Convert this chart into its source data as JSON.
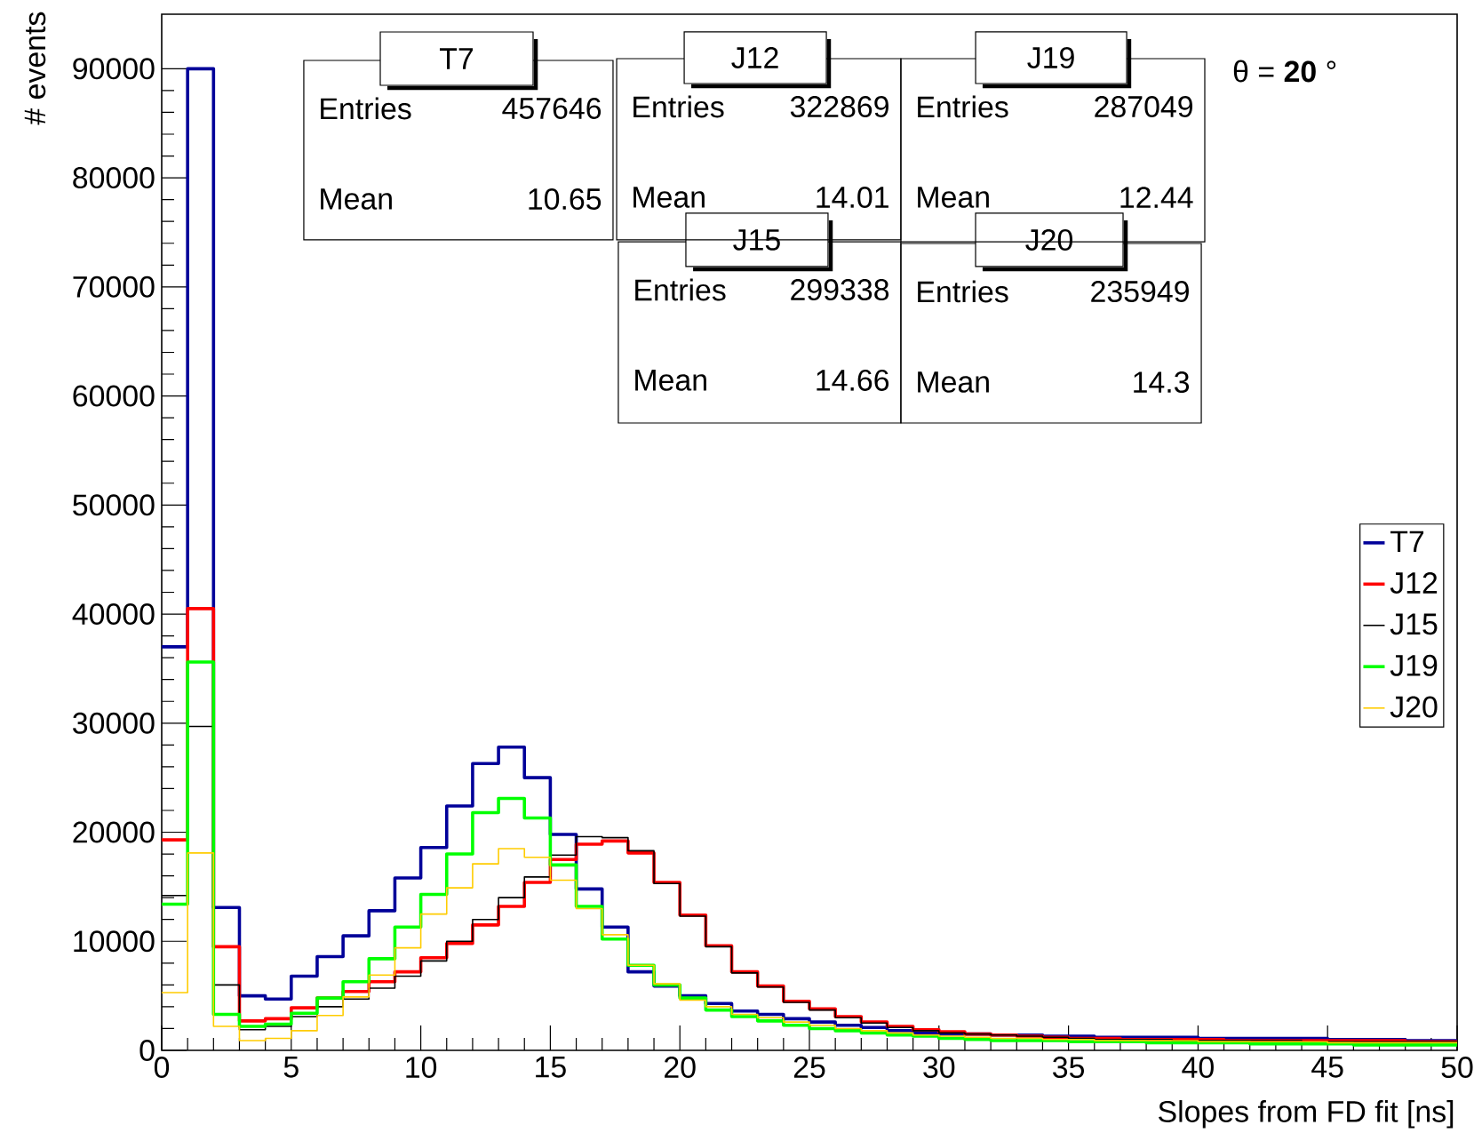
{
  "chart_data": {
    "type": "histogram",
    "xlabel": "Slopes from FD fit [ns]",
    "ylabel": "# events",
    "bins": [
      0,
      1,
      2,
      3,
      4,
      5,
      6,
      7,
      8,
      9,
      10,
      11,
      12,
      13,
      14,
      15,
      16,
      17,
      18,
      19,
      20,
      21,
      22,
      23,
      24,
      25,
      26,
      27,
      28,
      29,
      30,
      31,
      32,
      33,
      34,
      35,
      36,
      37,
      38,
      39,
      40,
      41,
      42,
      43,
      44,
      45,
      46,
      47,
      48,
      49,
      50
    ],
    "xlim": [
      0,
      50
    ],
    "xticks": [
      0,
      5,
      10,
      15,
      20,
      25,
      30,
      35,
      40,
      45,
      50
    ],
    "ylim": [
      0,
      95000
    ],
    "yticks": [
      0,
      10000,
      20000,
      30000,
      40000,
      50000,
      60000,
      70000,
      80000,
      90000
    ],
    "legend": "right",
    "series": [
      {
        "name": "T7",
        "color": "#000099",
        "values": [
          37000,
          90000,
          13100,
          5000,
          4700,
          6800,
          8600,
          10500,
          12800,
          15800,
          18600,
          22400,
          26300,
          27800,
          25000,
          19800,
          14800,
          11300,
          7200,
          5900,
          5000,
          4300,
          3600,
          3300,
          2900,
          2600,
          2300,
          2100,
          1800,
          1600,
          1500,
          1500,
          1400,
          1400,
          1300,
          1300,
          1200,
          1200,
          1200,
          1200,
          1100,
          1100,
          1100,
          1100,
          1100,
          1000,
          1000,
          1000,
          900,
          900
        ]
      },
      {
        "name": "J12",
        "color": "#ff0000",
        "values": [
          19300,
          40500,
          9500,
          2700,
          2900,
          3900,
          4800,
          5400,
          6300,
          7200,
          8500,
          9800,
          11500,
          13200,
          15400,
          17500,
          18900,
          19200,
          18100,
          15400,
          12400,
          9600,
          7200,
          5900,
          4500,
          3800,
          3100,
          2600,
          2200,
          1900,
          1700,
          1500,
          1400,
          1300,
          1200,
          1100,
          1100,
          1000,
          1000,
          1000,
          1000,
          900,
          900,
          900,
          900,
          900,
          900,
          900,
          800,
          800
        ]
      },
      {
        "name": "J15",
        "color": "#000000",
        "values": [
          14200,
          29700,
          6000,
          1900,
          2200,
          3100,
          4000,
          4700,
          5700,
          6800,
          8200,
          10000,
          12000,
          14000,
          15900,
          17900,
          19600,
          19500,
          18300,
          15300,
          12300,
          9500,
          7100,
          5800,
          4400,
          3700,
          3000,
          2500,
          2100,
          1800,
          1600,
          1500,
          1400,
          1300,
          1200,
          1100,
          1000,
          1000,
          1000,
          900,
          900,
          900,
          900,
          900,
          800,
          800,
          800,
          800,
          800,
          800
        ]
      },
      {
        "name": "J19",
        "color": "#00ff00",
        "values": [
          13400,
          35600,
          3300,
          2200,
          2400,
          3400,
          4800,
          6300,
          8400,
          11300,
          14300,
          18000,
          21800,
          23100,
          21300,
          17000,
          13200,
          10200,
          7800,
          6000,
          4800,
          3700,
          3100,
          2700,
          2300,
          2000,
          1800,
          1600,
          1400,
          1300,
          1100,
          1000,
          900,
          900,
          900,
          800,
          800,
          800,
          700,
          700,
          700,
          700,
          600,
          600,
          600,
          600,
          500,
          500,
          500,
          500
        ]
      },
      {
        "name": "J20",
        "color": "#ffcc00",
        "values": [
          5300,
          18100,
          2200,
          900,
          1100,
          1800,
          3200,
          4900,
          6900,
          9400,
          12500,
          14900,
          17100,
          18500,
          17700,
          15600,
          13000,
          10600,
          7800,
          6100,
          4600,
          4000,
          3300,
          3000,
          2600,
          2300,
          2000,
          1800,
          1600,
          1400,
          1300,
          1200,
          1100,
          1100,
          1000,
          1000,
          900,
          900,
          900,
          900,
          800,
          800,
          800,
          800,
          800,
          700,
          700,
          700,
          700,
          700
        ]
      }
    ],
    "annotations": [
      "θ = **20** °",
      "T7",
      "Entries",
      "457646",
      "Mean",
      "10.65",
      "J12",
      "Entries",
      "322869",
      "Mean",
      "14.01",
      "J19",
      "Entries",
      "287049",
      "Mean",
      "12.44",
      "J15",
      "Entries",
      "299338",
      "Mean",
      "14.66",
      "J20",
      "Entries",
      "235949",
      "Mean",
      "14.3"
    ]
  }
}
